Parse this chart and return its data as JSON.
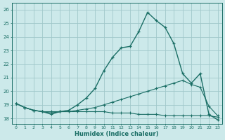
{
  "bg_color": "#cce9ea",
  "grid_color": "#a0c8ca",
  "line_color": "#1a6e65",
  "xlabel": "Humidex (Indice chaleur)",
  "xlim_min": -0.5,
  "xlim_max": 23.5,
  "ylim_min": 17.6,
  "ylim_max": 26.5,
  "yticks": [
    18,
    19,
    20,
    21,
    22,
    23,
    24,
    25,
    26
  ],
  "xticks": [
    0,
    1,
    2,
    3,
    4,
    5,
    6,
    7,
    8,
    9,
    10,
    11,
    12,
    13,
    14,
    15,
    16,
    17,
    18,
    19,
    20,
    21,
    22,
    23
  ],
  "line1_x": [
    0,
    1,
    2,
    3,
    4,
    5,
    6,
    7,
    8,
    9,
    10,
    11,
    12,
    13,
    14,
    15,
    16,
    17,
    18,
    19,
    20,
    21,
    22,
    23
  ],
  "line1_y": [
    19.1,
    18.8,
    18.6,
    18.5,
    18.3,
    18.5,
    18.5,
    18.5,
    18.5,
    18.5,
    18.5,
    18.4,
    18.4,
    18.4,
    18.3,
    18.3,
    18.3,
    18.2,
    18.2,
    18.2,
    18.2,
    18.2,
    18.2,
    18.1
  ],
  "line2_x": [
    0,
    1,
    2,
    3,
    4,
    5,
    6,
    7,
    8,
    9,
    10,
    11,
    12,
    13,
    14,
    15,
    16,
    17,
    18,
    19,
    20,
    21,
    22,
    23
  ],
  "line2_y": [
    19.1,
    18.8,
    18.6,
    18.5,
    18.5,
    18.5,
    18.5,
    18.6,
    18.7,
    18.8,
    19.0,
    19.2,
    19.4,
    19.6,
    19.8,
    20.0,
    20.2,
    20.4,
    20.6,
    20.8,
    20.5,
    20.3,
    18.9,
    18.2
  ],
  "line3_x": [
    0,
    1,
    2,
    3,
    4,
    5,
    6,
    7,
    8,
    9,
    10,
    11,
    12,
    13,
    14,
    15,
    16,
    17,
    18,
    19,
    20,
    21,
    22,
    23
  ],
  "line3_y": [
    19.1,
    18.8,
    18.6,
    18.5,
    18.4,
    18.5,
    18.6,
    19.0,
    19.5,
    20.2,
    21.5,
    22.5,
    23.2,
    23.3,
    24.4,
    25.8,
    25.2,
    24.7,
    23.5,
    21.3,
    20.6,
    21.3,
    18.3,
    17.9
  ]
}
